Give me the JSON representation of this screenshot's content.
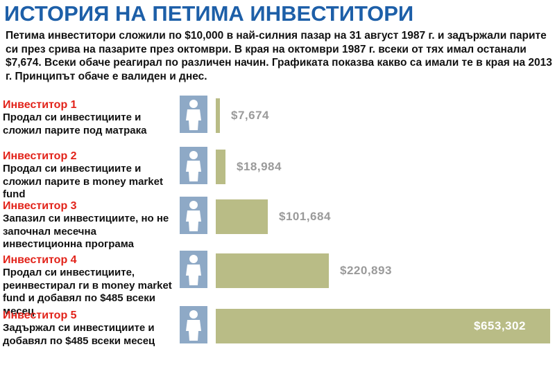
{
  "title": "ИСТОРИЯ НА ПЕТИМА ИНВЕСТИТОРИ",
  "intro": "Петима инвеститори сложили по $10,000 в най-силния пазар на 31 август 1987 г. и задържали парите си през срива на пазарите през октомври. В края на октомври 1987 г. всеки от тях имал останали $7,674. Всеки обаче реагирал по различен начин. Графиката показва какво са имали те в края на 2013 г. Принципът обаче е валиден и днес.",
  "colors": {
    "title": "#1d5fa8",
    "label": "#e2231a",
    "bar": "#b9bc86",
    "avatar": "#8ea9c6",
    "value": "#9a9a9a"
  },
  "chart_data": {
    "type": "bar",
    "orientation": "horizontal",
    "title": "ИСТОРИЯ НА ПЕТИМА ИНВЕСТИТОРИ",
    "xlim": [
      0,
      653302
    ],
    "investors": [
      {
        "label": "Инвеститор 1",
        "description": "Продал си инвестициите и сложил парите под матрака",
        "value": 7674,
        "value_label": "$7,674"
      },
      {
        "label": "Инвеститор 2",
        "description": "Продал си инвестициите и сложил парите в money market fund",
        "value": 18984,
        "value_label": "$18,984"
      },
      {
        "label": "Инвеститор 3",
        "description": "Запазил си инвестициите, но не започнал месечна инвестиционна програма",
        "value": 101684,
        "value_label": "$101,684"
      },
      {
        "label": "Инвеститор 4",
        "description": "Продал си инвестициите, реинвестирал ги в money market fund и добавял по $485 всеки месец",
        "value": 220893,
        "value_label": "$220,893"
      },
      {
        "label": "Инвеститор 5",
        "description": "Задържал си инвестициите и добавял по $485 всеки месец",
        "value": 653302,
        "value_label": "$653,302"
      }
    ]
  }
}
